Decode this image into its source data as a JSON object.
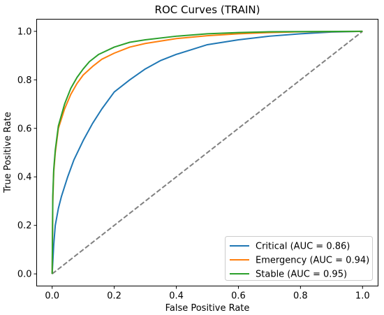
{
  "chart_data": {
    "type": "line",
    "title": "ROC Curves (TRAIN)",
    "xlabel": "False Positive Rate",
    "ylabel": "True Positive Rate",
    "xlim": [
      -0.05,
      1.05
    ],
    "ylim": [
      -0.05,
      1.05
    ],
    "xticks": [
      0.0,
      0.2,
      0.4,
      0.6,
      0.8,
      1.0
    ],
    "yticks": [
      0.0,
      0.2,
      0.4,
      0.6,
      0.8,
      1.0
    ],
    "xtick_labels": [
      "0.0",
      "0.2",
      "0.4",
      "0.6",
      "0.8",
      "1.0"
    ],
    "ytick_labels": [
      "0.0",
      "0.2",
      "0.4",
      "0.6",
      "0.8",
      "1.0"
    ],
    "grid": false,
    "legend_position": "lower-right",
    "series": [
      {
        "name": "Critical (AUC = 0.86)",
        "color": "#1f77b4",
        "points": [
          [
            0.0,
            0.0
          ],
          [
            0.005,
            0.12
          ],
          [
            0.01,
            0.2
          ],
          [
            0.02,
            0.27
          ],
          [
            0.03,
            0.32
          ],
          [
            0.05,
            0.4
          ],
          [
            0.07,
            0.47
          ],
          [
            0.1,
            0.55
          ],
          [
            0.13,
            0.62
          ],
          [
            0.16,
            0.68
          ],
          [
            0.2,
            0.75
          ],
          [
            0.25,
            0.8
          ],
          [
            0.3,
            0.845
          ],
          [
            0.35,
            0.88
          ],
          [
            0.4,
            0.905
          ],
          [
            0.45,
            0.925
          ],
          [
            0.5,
            0.945
          ],
          [
            0.6,
            0.965
          ],
          [
            0.7,
            0.98
          ],
          [
            0.8,
            0.99
          ],
          [
            0.9,
            0.997
          ],
          [
            1.0,
            1.0
          ]
        ]
      },
      {
        "name": "Emergency (AUC = 0.94)",
        "color": "#ff7f0e",
        "points": [
          [
            0.0,
            0.0
          ],
          [
            0.002,
            0.3
          ],
          [
            0.005,
            0.42
          ],
          [
            0.01,
            0.5
          ],
          [
            0.02,
            0.6
          ],
          [
            0.04,
            0.68
          ],
          [
            0.06,
            0.74
          ],
          [
            0.08,
            0.785
          ],
          [
            0.1,
            0.82
          ],
          [
            0.13,
            0.855
          ],
          [
            0.16,
            0.885
          ],
          [
            0.2,
            0.91
          ],
          [
            0.25,
            0.935
          ],
          [
            0.3,
            0.95
          ],
          [
            0.4,
            0.97
          ],
          [
            0.5,
            0.982
          ],
          [
            0.6,
            0.99
          ],
          [
            0.7,
            0.995
          ],
          [
            0.8,
            0.998
          ],
          [
            1.0,
            1.0
          ]
        ]
      },
      {
        "name": "Stable (AUC = 0.95)",
        "color": "#2ca02c",
        "points": [
          [
            0.0,
            0.0
          ],
          [
            0.002,
            0.32
          ],
          [
            0.005,
            0.43
          ],
          [
            0.01,
            0.51
          ],
          [
            0.02,
            0.61
          ],
          [
            0.04,
            0.7
          ],
          [
            0.06,
            0.765
          ],
          [
            0.08,
            0.81
          ],
          [
            0.1,
            0.845
          ],
          [
            0.12,
            0.875
          ],
          [
            0.15,
            0.905
          ],
          [
            0.2,
            0.935
          ],
          [
            0.25,
            0.955
          ],
          [
            0.3,
            0.965
          ],
          [
            0.4,
            0.98
          ],
          [
            0.5,
            0.99
          ],
          [
            0.6,
            0.995
          ],
          [
            0.7,
            0.998
          ],
          [
            0.8,
            0.999
          ],
          [
            1.0,
            1.0
          ]
        ]
      },
      {
        "name": "",
        "color": "#808080",
        "dashed": true,
        "points": [
          [
            0.0,
            0.0
          ],
          [
            1.0,
            1.0
          ]
        ]
      }
    ],
    "legend": [
      {
        "label": "Critical (AUC = 0.86)",
        "color": "#1f77b4"
      },
      {
        "label": "Emergency (AUC = 0.94)",
        "color": "#ff7f0e"
      },
      {
        "label": "Stable (AUC = 0.95)",
        "color": "#2ca02c"
      }
    ]
  }
}
